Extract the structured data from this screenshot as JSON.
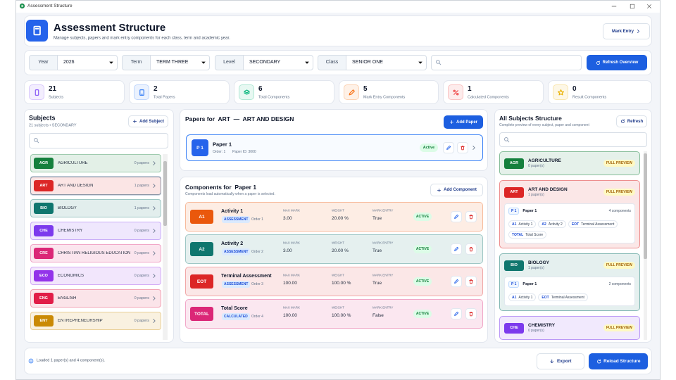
{
  "window": {
    "title": "Assessment Structure"
  },
  "header": {
    "title": "Assessment Structure",
    "subtitle": "Manage subjects, papers and mark entry components for each class, term and academic year.",
    "mark_entry": "Mark Entry"
  },
  "filters": [
    {
      "label": "Year",
      "value": "2026"
    },
    {
      "label": "Term",
      "value": "TERM THREE"
    },
    {
      "label": "Level",
      "value": "SECONDARY"
    },
    {
      "label": "Class",
      "value": "SENIOR ONE"
    }
  ],
  "refresh_overview": "Refresh Overview",
  "stats": [
    {
      "value": 21,
      "label": "Subjects",
      "color": "#8b5cf6"
    },
    {
      "value": 2,
      "label": "Total Papers",
      "color": "#3b82f6"
    },
    {
      "value": 6,
      "label": "Total Components",
      "color": "#10b981"
    },
    {
      "value": 5,
      "label": "Mark Entry Components",
      "color": "#f97316"
    },
    {
      "value": 1,
      "label": "Calculated Components",
      "color": "#ef4444"
    },
    {
      "value": 0,
      "label": "Result Components",
      "color": "#eab308"
    }
  ],
  "subjects": {
    "title": "Subjects",
    "subtitle": "21 subjects • SECONDARY",
    "add": "Add Subject",
    "items": [
      {
        "code": "AGR",
        "name": "AGRICULTURE",
        "papers": "0 papers",
        "color": "#15803d"
      },
      {
        "code": "ART",
        "name": "ART AND DESIGN",
        "papers": "1 papers",
        "color": "#dc2626",
        "selected": true
      },
      {
        "code": "BIO",
        "name": "BIOLOGY",
        "papers": "1 papers",
        "color": "#0f766e"
      },
      {
        "code": "CHE",
        "name": "CHEMISTRY",
        "papers": "0 papers",
        "color": "#7c3aed"
      },
      {
        "code": "CRE",
        "name": "CHRISTIAN RELIGIOUS EDUCATION",
        "papers": "0 papers",
        "color": "#db2777"
      },
      {
        "code": "ECO",
        "name": "ECONOMICS",
        "papers": "0 papers",
        "color": "#9333ea"
      },
      {
        "code": "ENG",
        "name": "ENGLISH",
        "papers": "0 papers",
        "color": "#e11d48"
      },
      {
        "code": "ENT",
        "name": "ENTREPRENEURSHIP",
        "papers": "0 papers",
        "color": "#ca8a04"
      }
    ]
  },
  "papers": {
    "title": "Papers for  ART  —  ART AND DESIGN",
    "add": "Add Paper",
    "items": [
      {
        "code": "P 1",
        "name": "Paper 1",
        "order": "Order: 1",
        "id": "Paper ID: 3000",
        "status": "Active"
      }
    ]
  },
  "components": {
    "title": "Components for  Paper 1",
    "subtitle": "Components load automatically when a paper is selected.",
    "add": "Add Component",
    "columns": [
      "MAX MARK",
      "WEIGHT",
      "MARK ENTRY"
    ],
    "items": [
      {
        "code": "A1",
        "name": "Activity 1",
        "type": "ASSESSMENT",
        "order": "Order 1",
        "max_mark": "3.00",
        "weight": "20.00 %",
        "mark_entry": "True",
        "status": "ACTIVE",
        "color": "#ea580c"
      },
      {
        "code": "A2",
        "name": "Activity 2",
        "type": "ASSESSMENT",
        "order": "Order 2",
        "max_mark": "3.00",
        "weight": "20.00 %",
        "mark_entry": "True",
        "status": "ACTIVE",
        "color": "#0f766e"
      },
      {
        "code": "EOT",
        "name": "Terminal Assessment",
        "type": "ASSESSMENT",
        "order": "Order 3",
        "max_mark": "100.00",
        "weight": "100.00 %",
        "mark_entry": "True",
        "status": "ACTIVE",
        "color": "#dc2626"
      },
      {
        "code": "TOTAL",
        "name": "Total Score",
        "type": "CALCULATED",
        "order": "Order 4",
        "max_mark": "100.00",
        "weight": "100.00 %",
        "mark_entry": "False",
        "status": "ACTIVE",
        "color": "#db2777"
      }
    ]
  },
  "structure": {
    "title": "All Subjects Structure",
    "subtitle": "Complete preview of every subject, paper and component",
    "refresh": "Refresh",
    "items": [
      {
        "code": "AGR",
        "name": "AGRICULTURE",
        "papers": "0 paper(s)",
        "preview": "FULL PREVIEW",
        "color": "#15803d",
        "paper_list": []
      },
      {
        "code": "ART",
        "name": "ART AND DESIGN",
        "papers": "1 paper(s)",
        "preview": "FULL PREVIEW",
        "color": "#dc2626",
        "paper_list": [
          {
            "code": "P 1",
            "name": "Paper 1",
            "count": "4 components",
            "components": [
              {
                "code": "A1",
                "name": "Activity 1"
              },
              {
                "code": "A2",
                "name": "Activity 2"
              },
              {
                "code": "EOT",
                "name": "Terminal Assessment"
              },
              {
                "code": "TOTAL",
                "name": "Total Score"
              }
            ]
          }
        ]
      },
      {
        "code": "BIO",
        "name": "BIOLOGY",
        "papers": "1 paper(s)",
        "preview": "FULL PREVIEW",
        "color": "#0f766e",
        "paper_list": [
          {
            "code": "P 1",
            "name": "Paper 1",
            "count": "2 components",
            "components": [
              {
                "code": "A1",
                "name": "Activity 1"
              },
              {
                "code": "EOT",
                "name": "Terminal Assessment"
              }
            ]
          }
        ]
      },
      {
        "code": "CHE",
        "name": "CHEMISTRY",
        "papers": "0 paper(s)",
        "preview": "FULL PREVIEW",
        "color": "#7c3aed",
        "paper_list": []
      }
    ]
  },
  "footer": {
    "status": "Loaded 1 paper(s) and 4 component(s).",
    "export": "Export",
    "reload": "Reload Structure"
  }
}
